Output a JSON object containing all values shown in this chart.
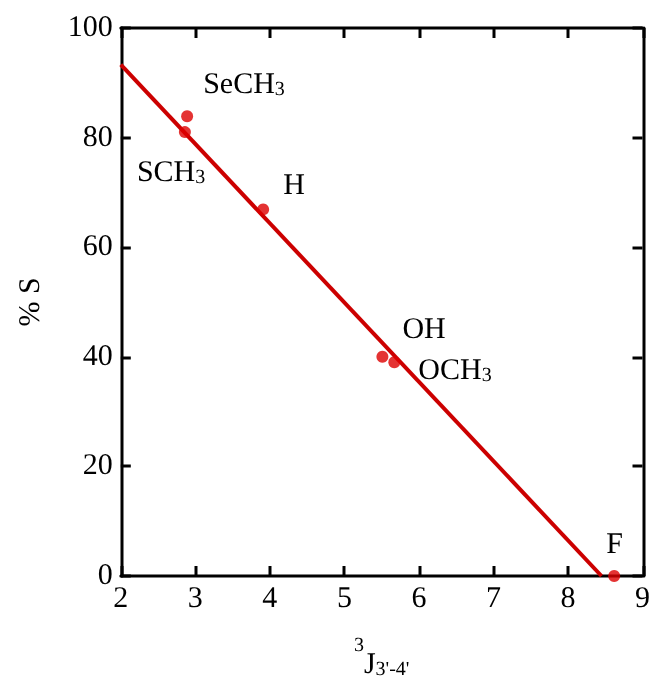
{
  "chart_data": {
    "type": "scatter",
    "xlabel": "$^{3}$J$_{3'-4'}$",
    "ylabel": "% S",
    "xlim": [
      2,
      9
    ],
    "xticks": [
      2,
      3,
      4,
      5,
      6,
      7,
      8,
      9
    ],
    "ylim": [
      0,
      100
    ],
    "yticks": [
      0,
      20,
      40,
      60,
      80,
      100
    ],
    "grid": false,
    "marker": "circle",
    "series": [
      {
        "color": "#dd0000",
        "x": [
          2.89,
          2.86,
          3.91,
          5.51,
          5.67,
          8.62
        ],
        "values": [
          83.9,
          81.0,
          66.9,
          40.0,
          39.0,
          0
        ]
      },
      {
        "type": "line",
        "color": "#cc0000",
        "marker": "none",
        "line_style": "solid",
        "x": [
          2,
          8.45
        ],
        "values": [
          93.3,
          0
        ]
      }
    ],
    "annotations": [
      {
        "text": "SeCH$_{3}$",
        "x": 2.89,
        "y": 83.9
      },
      {
        "text": "SCH$_{3}$",
        "x": 2.86,
        "y": 81.0
      },
      {
        "text": "H",
        "x": 3.91,
        "y": 66.9
      },
      {
        "text": "OH",
        "x": 5.51,
        "y": 40.0
      },
      {
        "text": "OCH$_{3}$",
        "x": 5.67,
        "y": 39.0
      },
      {
        "text": "F",
        "x": 8.62,
        "y": 0
      }
    ]
  }
}
